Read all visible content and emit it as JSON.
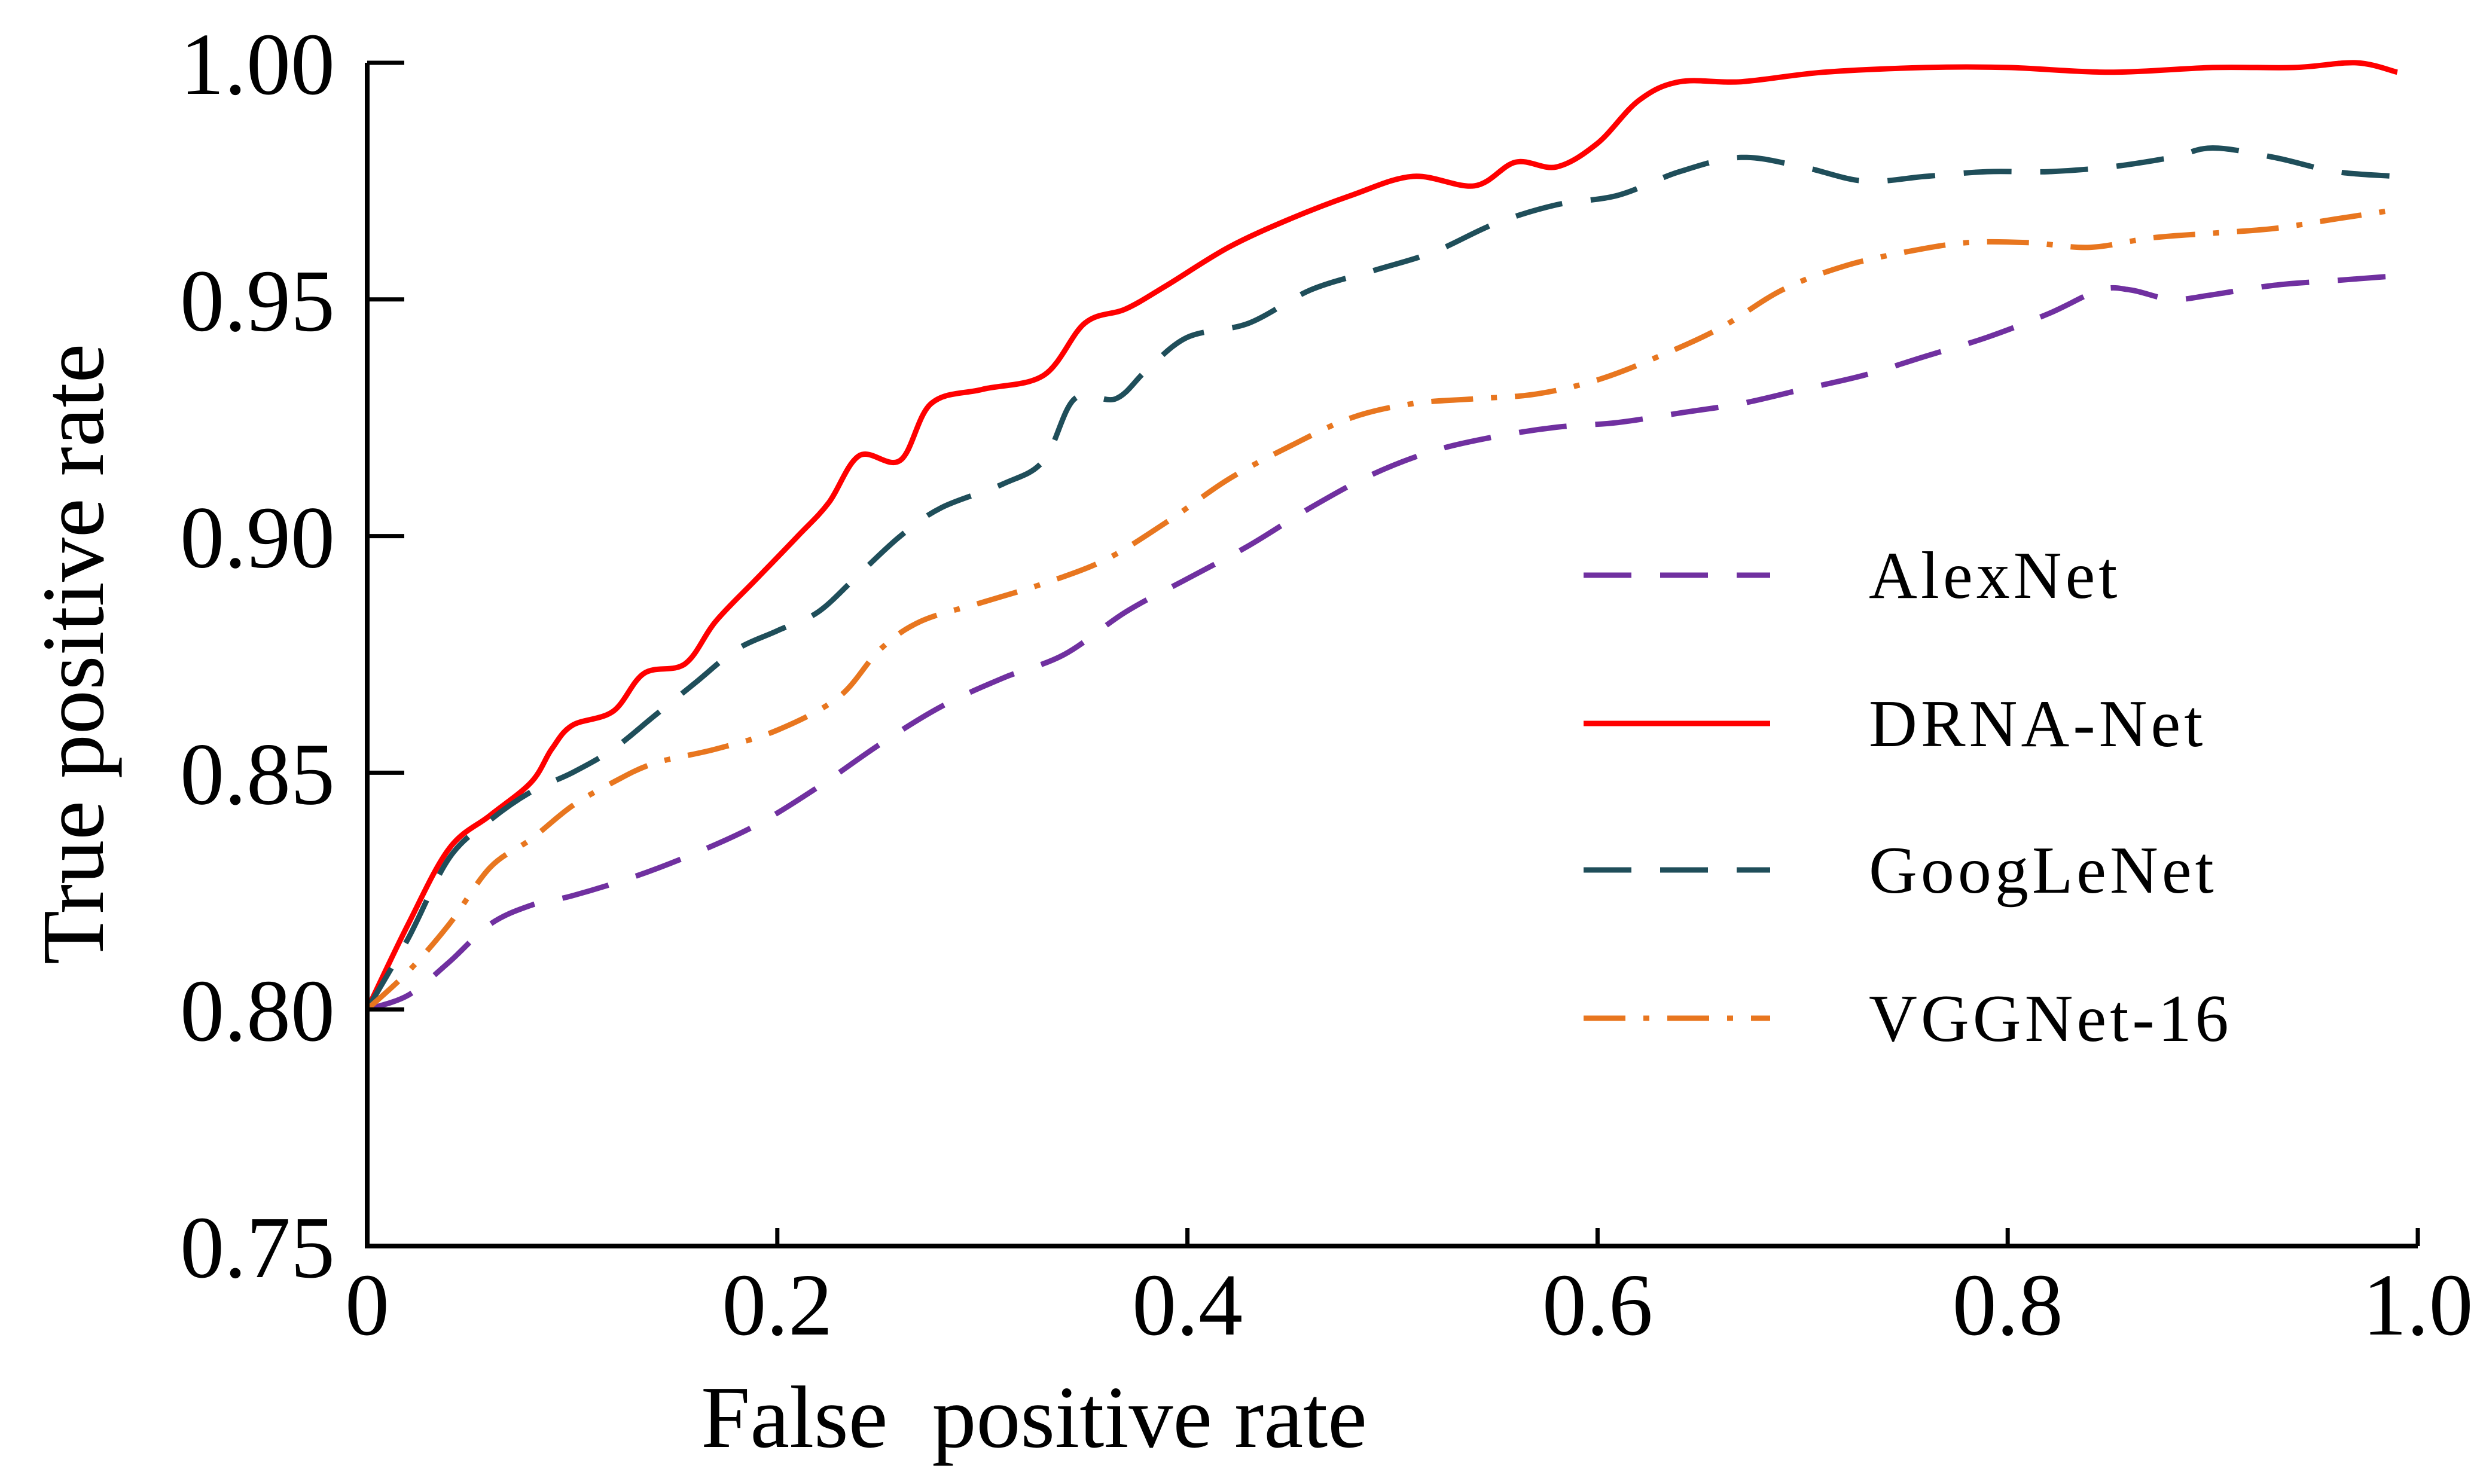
{
  "chart_data": {
    "type": "line",
    "title": "",
    "xlabel": "False  positive rate",
    "ylabel": "True positive rate",
    "xlim": [
      0,
      1.0
    ],
    "ylim": [
      0.75,
      1.0
    ],
    "grid": false,
    "legend_position": "right",
    "x_ticks": [
      {
        "value": 0,
        "label": "0"
      },
      {
        "value": 0.2,
        "label": "0.2"
      },
      {
        "value": 0.4,
        "label": "0.4"
      },
      {
        "value": 0.6,
        "label": "0.6"
      },
      {
        "value": 0.8,
        "label": "0.8"
      },
      {
        "value": 1.0,
        "label": "1.0"
      }
    ],
    "y_ticks": [
      {
        "value": 0.75,
        "label": "0.75"
      },
      {
        "value": 0.8,
        "label": "0.80"
      },
      {
        "value": 0.85,
        "label": "0.85"
      },
      {
        "value": 0.9,
        "label": "0.90"
      },
      {
        "value": 0.95,
        "label": "0.95"
      },
      {
        "value": 1.0,
        "label": "1.00"
      }
    ],
    "series": [
      {
        "name": "AlexNet",
        "color": "#7030a0",
        "dash": "dash",
        "points": [
          [
            0.0,
            0.8
          ],
          [
            0.02,
            0.803
          ],
          [
            0.04,
            0.81
          ],
          [
            0.06,
            0.818
          ],
          [
            0.08,
            0.822
          ],
          [
            0.1,
            0.824
          ],
          [
            0.13,
            0.828
          ],
          [
            0.16,
            0.833
          ],
          [
            0.19,
            0.839
          ],
          [
            0.22,
            0.847
          ],
          [
            0.25,
            0.856
          ],
          [
            0.28,
            0.864
          ],
          [
            0.31,
            0.87
          ],
          [
            0.34,
            0.875
          ],
          [
            0.37,
            0.884
          ],
          [
            0.4,
            0.891
          ],
          [
            0.43,
            0.898
          ],
          [
            0.46,
            0.906
          ],
          [
            0.49,
            0.913
          ],
          [
            0.52,
            0.918
          ],
          [
            0.55,
            0.921
          ],
          [
            0.58,
            0.923
          ],
          [
            0.61,
            0.924
          ],
          [
            0.64,
            0.926
          ],
          [
            0.67,
            0.928
          ],
          [
            0.7,
            0.931
          ],
          [
            0.73,
            0.934
          ],
          [
            0.76,
            0.938
          ],
          [
            0.79,
            0.942
          ],
          [
            0.82,
            0.947
          ],
          [
            0.845,
            0.952
          ],
          [
            0.86,
            0.952
          ],
          [
            0.88,
            0.95
          ],
          [
            0.9,
            0.951
          ],
          [
            0.93,
            0.953
          ],
          [
            0.96,
            0.954
          ],
          [
            0.99,
            0.955
          ]
        ]
      },
      {
        "name": "DRNA-Net",
        "color": "#ff0000",
        "dash": "solid",
        "points": [
          [
            0.0,
            0.8
          ],
          [
            0.02,
            0.818
          ],
          [
            0.04,
            0.834
          ],
          [
            0.06,
            0.841
          ],
          [
            0.08,
            0.848
          ],
          [
            0.09,
            0.855
          ],
          [
            0.1,
            0.86
          ],
          [
            0.12,
            0.863
          ],
          [
            0.135,
            0.871
          ],
          [
            0.155,
            0.873
          ],
          [
            0.17,
            0.882
          ],
          [
            0.19,
            0.891
          ],
          [
            0.21,
            0.9
          ],
          [
            0.225,
            0.907
          ],
          [
            0.24,
            0.917
          ],
          [
            0.26,
            0.916
          ],
          [
            0.275,
            0.928
          ],
          [
            0.3,
            0.931
          ],
          [
            0.33,
            0.934
          ],
          [
            0.35,
            0.945
          ],
          [
            0.37,
            0.948
          ],
          [
            0.39,
            0.953
          ],
          [
            0.42,
            0.961
          ],
          [
            0.45,
            0.967
          ],
          [
            0.48,
            0.972
          ],
          [
            0.51,
            0.976
          ],
          [
            0.54,
            0.974
          ],
          [
            0.56,
            0.979
          ],
          [
            0.58,
            0.978
          ],
          [
            0.6,
            0.983
          ],
          [
            0.62,
            0.992
          ],
          [
            0.64,
            0.996
          ],
          [
            0.67,
            0.996
          ],
          [
            0.71,
            0.998
          ],
          [
            0.76,
            0.999
          ],
          [
            0.8,
            0.999
          ],
          [
            0.85,
            0.998
          ],
          [
            0.9,
            0.999
          ],
          [
            0.94,
            0.999
          ],
          [
            0.97,
            1.0
          ],
          [
            0.99,
            0.998
          ]
        ]
      },
      {
        "name": "GoogLeNet",
        "color": "#1f4e5a",
        "dash": "dash",
        "points": [
          [
            0.0,
            0.8
          ],
          [
            0.02,
            0.815
          ],
          [
            0.04,
            0.832
          ],
          [
            0.06,
            0.84
          ],
          [
            0.08,
            0.846
          ],
          [
            0.1,
            0.85
          ],
          [
            0.12,
            0.855
          ],
          [
            0.14,
            0.862
          ],
          [
            0.16,
            0.869
          ],
          [
            0.18,
            0.876
          ],
          [
            0.2,
            0.88
          ],
          [
            0.22,
            0.884
          ],
          [
            0.24,
            0.892
          ],
          [
            0.26,
            0.9
          ],
          [
            0.28,
            0.906
          ],
          [
            0.31,
            0.911
          ],
          [
            0.33,
            0.916
          ],
          [
            0.345,
            0.929
          ],
          [
            0.365,
            0.929
          ],
          [
            0.38,
            0.935
          ],
          [
            0.4,
            0.942
          ],
          [
            0.43,
            0.945
          ],
          [
            0.46,
            0.952
          ],
          [
            0.49,
            0.956
          ],
          [
            0.52,
            0.96
          ],
          [
            0.55,
            0.966
          ],
          [
            0.58,
            0.97
          ],
          [
            0.61,
            0.972
          ],
          [
            0.64,
            0.977
          ],
          [
            0.67,
            0.98
          ],
          [
            0.7,
            0.978
          ],
          [
            0.73,
            0.975
          ],
          [
            0.76,
            0.976
          ],
          [
            0.79,
            0.977
          ],
          [
            0.82,
            0.977
          ],
          [
            0.85,
            0.978
          ],
          [
            0.88,
            0.98
          ],
          [
            0.9,
            0.982
          ],
          [
            0.93,
            0.98
          ],
          [
            0.96,
            0.977
          ],
          [
            0.99,
            0.976
          ]
        ]
      },
      {
        "name": "VGGNet-16",
        "color": "#e8761f",
        "dash": "dashdot",
        "points": [
          [
            0.0,
            0.8
          ],
          [
            0.02,
            0.808
          ],
          [
            0.04,
            0.818
          ],
          [
            0.06,
            0.83
          ],
          [
            0.08,
            0.836
          ],
          [
            0.1,
            0.843
          ],
          [
            0.12,
            0.848
          ],
          [
            0.14,
            0.852
          ],
          [
            0.17,
            0.855
          ],
          [
            0.2,
            0.859
          ],
          [
            0.23,
            0.866
          ],
          [
            0.25,
            0.876
          ],
          [
            0.27,
            0.882
          ],
          [
            0.3,
            0.886
          ],
          [
            0.33,
            0.89
          ],
          [
            0.36,
            0.895
          ],
          [
            0.39,
            0.903
          ],
          [
            0.42,
            0.912
          ],
          [
            0.45,
            0.919
          ],
          [
            0.48,
            0.925
          ],
          [
            0.51,
            0.928
          ],
          [
            0.54,
            0.929
          ],
          [
            0.57,
            0.93
          ],
          [
            0.6,
            0.933
          ],
          [
            0.63,
            0.938
          ],
          [
            0.66,
            0.944
          ],
          [
            0.69,
            0.952
          ],
          [
            0.72,
            0.957
          ],
          [
            0.75,
            0.96
          ],
          [
            0.78,
            0.962
          ],
          [
            0.81,
            0.962
          ],
          [
            0.84,
            0.961
          ],
          [
            0.87,
            0.963
          ],
          [
            0.9,
            0.964
          ],
          [
            0.93,
            0.965
          ],
          [
            0.96,
            0.967
          ],
          [
            0.99,
            0.969
          ]
        ]
      }
    ]
  }
}
